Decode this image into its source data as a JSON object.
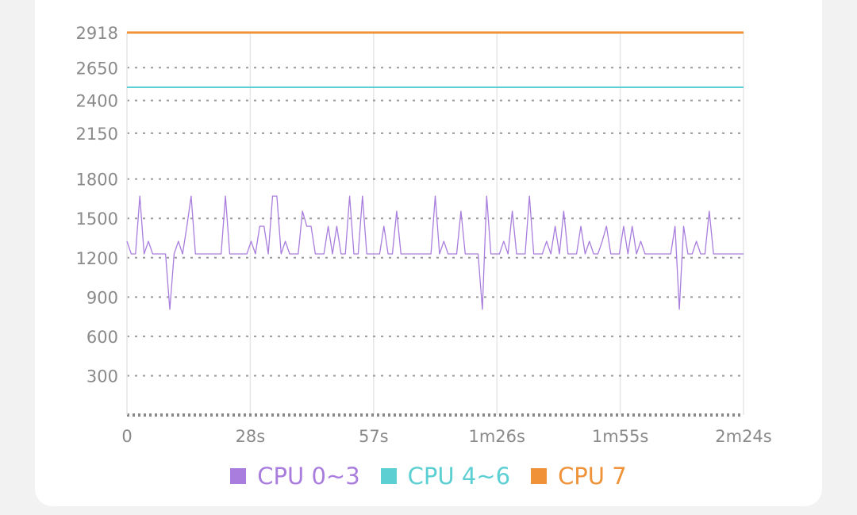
{
  "chart_data": {
    "type": "line",
    "title": "",
    "xlabel": "",
    "ylabel": "",
    "x_unit": "seconds",
    "x_ticks": [
      {
        "value": 0,
        "label": "0"
      },
      {
        "value": 28.8,
        "label": "28s"
      },
      {
        "value": 57.6,
        "label": "57s"
      },
      {
        "value": 86.4,
        "label": "1m26s"
      },
      {
        "value": 115.2,
        "label": "1m55s"
      },
      {
        "value": 144,
        "label": "2m24s"
      }
    ],
    "y_ticks": [
      {
        "value": 2918,
        "label": "2918"
      },
      {
        "value": 2650,
        "label": "2650"
      },
      {
        "value": 2400,
        "label": "2400"
      },
      {
        "value": 2150,
        "label": "2150"
      },
      {
        "value": 1800,
        "label": "1800"
      },
      {
        "value": 1500,
        "label": "1500"
      },
      {
        "value": 1200,
        "label": "1200"
      },
      {
        "value": 900,
        "label": "900"
      },
      {
        "value": 600,
        "label": "600"
      },
      {
        "value": 300,
        "label": "300"
      }
    ],
    "xlim": [
      0,
      144
    ],
    "ylim": [
      0,
      2918
    ],
    "grid": true,
    "legend_placement": "bottom",
    "series": [
      {
        "name": "CPU 0~3",
        "color": "#a97ddd",
        "values": [
          1325,
          1229,
          1229,
          1670,
          1229,
          1325,
          1229,
          1229,
          1229,
          1229,
          806,
          1229,
          1325,
          1229,
          1440,
          1670,
          1229,
          1229,
          1229,
          1229,
          1229,
          1229,
          1229,
          1670,
          1229,
          1229,
          1229,
          1229,
          1229,
          1325,
          1229,
          1440,
          1440,
          1229,
          1670,
          1670,
          1229,
          1325,
          1229,
          1229,
          1229,
          1555,
          1440,
          1440,
          1229,
          1229,
          1229,
          1440,
          1229,
          1440,
          1229,
          1229,
          1670,
          1229,
          1229,
          1670,
          1229,
          1229,
          1229,
          1229,
          1440,
          1229,
          1229,
          1555,
          1229,
          1229,
          1229,
          1229,
          1229,
          1229,
          1229,
          1229,
          1670,
          1229,
          1325,
          1229,
          1229,
          1229,
          1555,
          1229,
          1229,
          1229,
          1229,
          806,
          1670,
          1229,
          1229,
          1229,
          1325,
          1229,
          1555,
          1229,
          1229,
          1229,
          1670,
          1229,
          1229,
          1229,
          1325,
          1229,
          1440,
          1229,
          1555,
          1229,
          1229,
          1229,
          1440,
          1229,
          1325,
          1229,
          1229,
          1325,
          1440,
          1229,
          1229,
          1229,
          1440,
          1229,
          1440,
          1229,
          1325,
          1229,
          1229,
          1229,
          1229,
          1229,
          1229,
          1229,
          1440,
          806,
          1440,
          1229,
          1229,
          1325,
          1229,
          1229,
          1555,
          1229,
          1229,
          1229,
          1229,
          1229,
          1229,
          1229,
          1229
        ]
      },
      {
        "name": "CPU 4~6",
        "color": "#5ccfd3",
        "constant": 2500
      },
      {
        "name": "CPU 7",
        "color": "#ef9238",
        "constant": 2918
      }
    ]
  }
}
